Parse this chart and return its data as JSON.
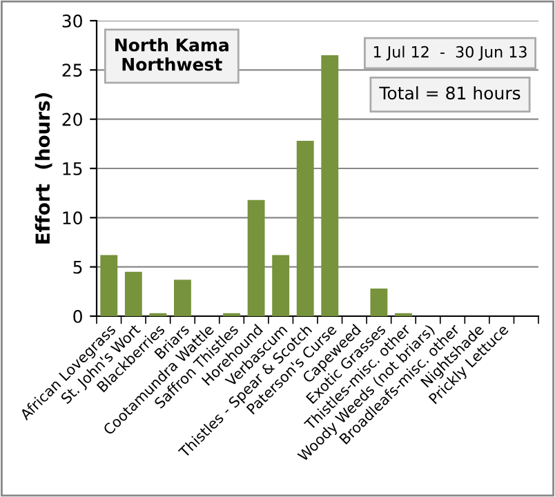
{
  "chart_data": {
    "type": "bar",
    "title": "North Kama\nNorthwest",
    "ylabel": "Effort  (hours)",
    "categories": [
      "African Lovegrass",
      "St. John's Wort",
      "Blackberries",
      "Briars",
      "Cootamundra Wattle",
      "Saffron Thistles",
      "Horehound",
      "Verbascum",
      "Thistles - Spear & Scotch",
      "Paterson's Curse",
      "Capeweed",
      "Exotic Grasses",
      "Thistles-misc. other",
      "Woody Weeds (not briars)",
      "Broadleafs-misc. other",
      "Nightshade",
      "Prickly Lettuce",
      null
    ],
    "values": [
      6.2,
      4.5,
      0.3,
      3.7,
      0,
      0.3,
      11.8,
      6.2,
      17.8,
      26.5,
      0,
      2.8,
      0.3,
      0,
      0,
      0,
      0,
      0
    ],
    "color": "#77933c",
    "ylim": [
      0,
      30
    ],
    "yticks": [
      0,
      5,
      10,
      15,
      20,
      25,
      30
    ],
    "grid": "y",
    "legend": false,
    "annotations": [
      "1 Jul 12  -  30 Jun 13",
      "Total = 81 hours"
    ]
  }
}
